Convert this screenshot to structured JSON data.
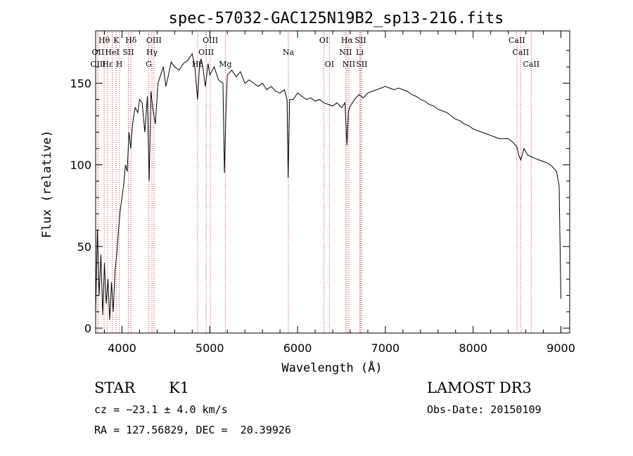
{
  "chart_data": {
    "type": "line",
    "title": "spec-57032-GAC125N19B2_sp13-216.fits",
    "xlabel": "Wavelength (Å)",
    "ylabel": "Flux (relative)",
    "xlim": [
      3700,
      9100
    ],
    "ylim": [
      -3,
      182
    ],
    "xticks": [
      4000,
      5000,
      6000,
      7000,
      8000,
      9000
    ],
    "yticks": [
      0,
      50,
      100,
      150
    ],
    "grid": false,
    "line_color": "#000000",
    "marker_color": "#cc3333",
    "series": [
      {
        "x": [
          3700,
          3720,
          3740,
          3760,
          3780,
          3800,
          3820,
          3840,
          3860,
          3880,
          3900,
          3920,
          3940,
          3960,
          3980,
          4000,
          4020,
          4040,
          4060,
          4080,
          4100,
          4120,
          4150,
          4180,
          4200,
          4230,
          4260,
          4290,
          4310,
          4330,
          4350,
          4380,
          4410,
          4440,
          4470,
          4500,
          4530,
          4560,
          4600,
          4650,
          4700,
          4750,
          4800,
          4830,
          4861,
          4880,
          4900,
          4920,
          4950,
          4980,
          5000,
          5050,
          5100,
          5150,
          5167,
          5183,
          5200,
          5250,
          5300,
          5350,
          5400,
          5450,
          5500,
          5550,
          5600,
          5650,
          5700,
          5750,
          5800,
          5850,
          5880,
          5893,
          5910,
          5950,
          6000,
          6050,
          6100,
          6150,
          6200,
          6250,
          6300,
          6350,
          6400,
          6450,
          6500,
          6540,
          6563,
          6580,
          6600,
          6650,
          6700,
          6750,
          6800,
          6850,
          6900,
          6950,
          7000,
          7050,
          7100,
          7150,
          7200,
          7250,
          7300,
          7350,
          7400,
          7450,
          7500,
          7550,
          7600,
          7650,
          7700,
          7750,
          7800,
          7850,
          7900,
          7950,
          8000,
          8050,
          8100,
          8150,
          8200,
          8250,
          8300,
          8350,
          8400,
          8450,
          8498,
          8520,
          8542,
          8580,
          8620,
          8662,
          8700,
          8750,
          8800,
          8850,
          8900,
          8950,
          8980,
          9000
        ],
        "y": [
          10,
          60,
          20,
          45,
          8,
          40,
          15,
          30,
          5,
          28,
          10,
          35,
          45,
          60,
          72,
          80,
          88,
          100,
          96,
          120,
          110,
          125,
          135,
          132,
          140,
          138,
          120,
          142,
          90,
          145,
          135,
          125,
          150,
          155,
          160,
          148,
          155,
          163,
          160,
          158,
          162,
          164,
          168,
          160,
          140,
          158,
          165,
          160,
          148,
          162,
          155,
          160,
          152,
          150,
          95,
          130,
          155,
          158,
          154,
          157,
          150,
          152,
          150,
          148,
          150,
          146,
          148,
          145,
          144,
          146,
          140,
          92,
          140,
          140,
          144,
          142,
          140,
          141,
          139,
          140,
          138,
          137,
          136,
          138,
          135,
          138,
          112,
          133,
          136,
          140,
          143,
          141,
          144,
          145,
          146,
          147,
          148,
          147,
          146,
          147,
          146,
          145,
          143,
          142,
          140,
          139,
          137,
          136,
          134,
          133,
          132,
          130,
          128,
          127,
          125,
          124,
          122,
          121,
          120,
          119,
          118,
          117,
          116,
          116,
          116,
          114,
          111,
          106,
          103,
          110,
          106,
          105,
          104,
          103,
          102,
          101,
          99,
          96,
          87,
          18
        ]
      }
    ],
    "lines": [
      {
        "label": "Hθ",
        "wl": 3797,
        "row": 0
      },
      {
        "label": "OII",
        "wl": 3727,
        "row": 1
      },
      {
        "label": "OIII",
        "wl": 3727,
        "row": 2
      },
      {
        "label": "Hε",
        "wl": 3835,
        "row": 2
      },
      {
        "label": "K",
        "wl": 3934,
        "row": 0
      },
      {
        "label": "HeI",
        "wl": 3889,
        "row": 1
      },
      {
        "label": "SII",
        "wl": 4072,
        "row": 1
      },
      {
        "label": "H",
        "wl": 3969,
        "row": 2
      },
      {
        "label": "Hδ",
        "wl": 4102,
        "row": 0
      },
      {
        "label": "OIII",
        "wl": 4364,
        "row": 0
      },
      {
        "label": "Hγ",
        "wl": 4341,
        "row": 1
      },
      {
        "label": "G",
        "wl": 4305,
        "row": 2
      },
      {
        "label": "OIII",
        "wl": 5007,
        "row": 0
      },
      {
        "label": "OIII",
        "wl": 4959,
        "row": 1
      },
      {
        "label": "Hβ",
        "wl": 4861,
        "row": 2
      },
      {
        "label": "Mg",
        "wl": 5177,
        "row": 2
      },
      {
        "label": "Na",
        "wl": 5895,
        "row": 1
      },
      {
        "label": "OI",
        "wl": 6300,
        "row": 0
      },
      {
        "label": "OI",
        "wl": 6363,
        "row": 2
      },
      {
        "label": "Hα",
        "wl": 6563,
        "row": 0
      },
      {
        "label": "SII",
        "wl": 6717,
        "row": 0
      },
      {
        "label": "NII",
        "wl": 6548,
        "row": 1
      },
      {
        "label": "Li",
        "wl": 6708,
        "row": 1
      },
      {
        "label": "NII",
        "wl": 6584,
        "row": 2
      },
      {
        "label": "SII",
        "wl": 6731,
        "row": 2
      },
      {
        "label": "CaII",
        "wl": 8498,
        "row": 0
      },
      {
        "label": "CaII",
        "wl": 8542,
        "row": 1
      },
      {
        "label": "CaII",
        "wl": 8662,
        "row": 2
      }
    ]
  },
  "info": {
    "object_class": "STAR",
    "subclass": "K1",
    "cz": "cz = −23.1 ± 4.0 km/s",
    "radec": "RA = 127.56829, DEC =  20.39926",
    "survey": "LAMOST DR3",
    "obs_date": "Obs-Date: 20150109"
  }
}
